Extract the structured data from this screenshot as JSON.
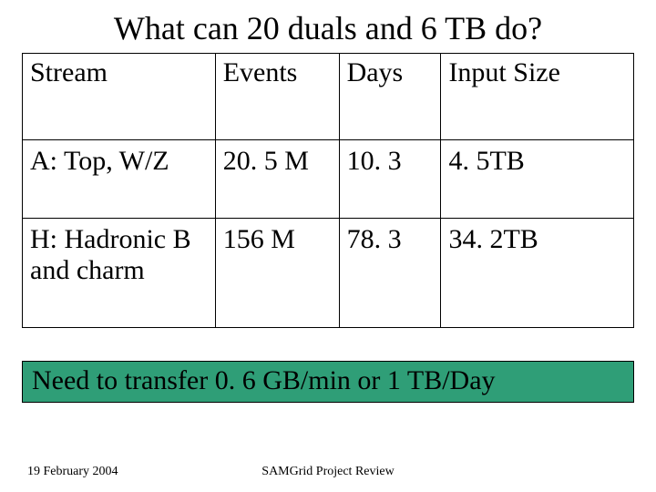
{
  "slide": {
    "title": "What can 20 duals and 6 TB do?",
    "callout_text": "Need to transfer 0. 6 GB/min or 1 TB/Day",
    "callout_bg": "#2f9e77"
  },
  "table": {
    "columns": [
      "Stream",
      "Events",
      "Days",
      "Input Size"
    ],
    "rows": [
      {
        "stream": "A: Top, W/Z",
        "events": "20. 5 M",
        "days": "10. 3",
        "size": "4. 5TB"
      },
      {
        "stream": "H: Hadronic B and charm",
        "events": "156 M",
        "days": "78. 3",
        "size": "34. 2TB"
      }
    ]
  },
  "footer": {
    "date": "19 February 2004",
    "center": "SAMGrid Project Review"
  }
}
